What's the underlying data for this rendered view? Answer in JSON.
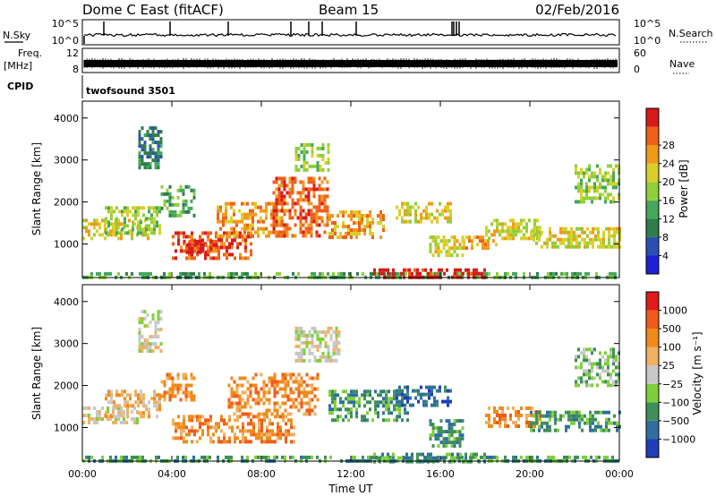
{
  "header": {
    "station": "Dome C East (fitACF)",
    "beam": "Beam 15",
    "date": "02/Feb/2016"
  },
  "aux": {
    "nsky_label": "N.Sky",
    "nsearch_label": "N.Search",
    "noise_ticks": [
      "10^5",
      "10^0"
    ],
    "freq_label": "Freq.",
    "freq_unit": "[MHz]",
    "freq_ticks": [
      "12",
      "8"
    ],
    "nave_label": "Nave",
    "nave_ticks": [
      "60",
      "0"
    ],
    "cpid_label": "CPID",
    "cpid_value": "twofsound 3501"
  },
  "chart_data": [
    {
      "type": "heatmap",
      "name": "power",
      "xlabel": "Time UT",
      "ylabel": "Slant Range [km]",
      "xlim": [
        0,
        24
      ],
      "x_tick_labels": [
        "00:00",
        "04:00",
        "08:00",
        "12:00",
        "16:00",
        "20:00",
        "00:00"
      ],
      "ylim": [
        200,
        4400
      ],
      "y_ticks": [
        1000,
        2000,
        3000,
        4000
      ],
      "colorbar": {
        "label": "Power [dB]",
        "ticks": [
          "4",
          "8",
          "12",
          "16",
          "20",
          "24",
          "28"
        ],
        "colors": [
          "#1f1fd6",
          "#2c4fb6",
          "#2f7d4a",
          "#44a85c",
          "#8fcf3a",
          "#d8cf2a",
          "#f09a1a",
          "#f0601a",
          "#d81a1a"
        ]
      },
      "regions": [
        {
          "t0": 0.0,
          "t1": 24.0,
          "r0": 180,
          "r1": 330,
          "level": 3
        },
        {
          "t0": 0.0,
          "t1": 3.0,
          "r0": 1100,
          "r1": 1600,
          "level": 5
        },
        {
          "t0": 1.0,
          "t1": 3.5,
          "r0": 1300,
          "r1": 1900,
          "level": 4
        },
        {
          "t0": 2.5,
          "t1": 3.5,
          "r0": 2800,
          "r1": 3800,
          "level": 2
        },
        {
          "t0": 3.5,
          "t1": 5.0,
          "r0": 1700,
          "r1": 2400,
          "level": 3
        },
        {
          "t0": 4.0,
          "t1": 7.5,
          "r0": 700,
          "r1": 1300,
          "level": 7
        },
        {
          "t0": 4.5,
          "t1": 6.0,
          "r0": 800,
          "r1": 1100,
          "level": 8
        },
        {
          "t0": 6.0,
          "t1": 9.0,
          "r0": 1200,
          "r1": 2000,
          "level": 6
        },
        {
          "t0": 8.5,
          "t1": 11.0,
          "r0": 1200,
          "r1": 2600,
          "level": 7
        },
        {
          "t0": 9.5,
          "t1": 11.0,
          "r0": 2800,
          "r1": 3400,
          "level": 4
        },
        {
          "t0": 11.0,
          "t1": 13.5,
          "r0": 1200,
          "r1": 1800,
          "level": 6
        },
        {
          "t0": 13.0,
          "t1": 18.0,
          "r0": 180,
          "r1": 420,
          "level": 8
        },
        {
          "t0": 14.0,
          "t1": 16.5,
          "r0": 1500,
          "r1": 2000,
          "level": 5
        },
        {
          "t0": 15.5,
          "t1": 17.0,
          "r0": 700,
          "r1": 1200,
          "level": 5
        },
        {
          "t0": 17.0,
          "t1": 18.5,
          "r0": 900,
          "r1": 1200,
          "level": 6
        },
        {
          "t0": 18.0,
          "t1": 20.5,
          "r0": 1100,
          "r1": 1600,
          "level": 5
        },
        {
          "t0": 20.0,
          "t1": 24.0,
          "r0": 900,
          "r1": 1400,
          "level": 5
        },
        {
          "t0": 22.0,
          "t1": 24.0,
          "r0": 2000,
          "r1": 2900,
          "level": 4
        }
      ]
    },
    {
      "type": "heatmap",
      "name": "velocity",
      "xlabel": "Time UT",
      "ylabel": "Slant Range [km]",
      "xlim": [
        0,
        24
      ],
      "x_tick_labels": [
        "00:00",
        "04:00",
        "08:00",
        "12:00",
        "16:00",
        "20:00",
        "00:00"
      ],
      "ylim": [
        200,
        4400
      ],
      "y_ticks": [
        1000,
        2000,
        3000,
        4000
      ],
      "colorbar": {
        "label": "Velocity [m s⁻¹]",
        "ticks": [
          "1000",
          "500",
          "100",
          "25",
          "−25",
          "−100",
          "−500",
          "−1000"
        ],
        "colors": [
          "#1f3fb6",
          "#2f6fa0",
          "#3f8f5a",
          "#7fcf3a",
          "#c8c8c8",
          "#f0b060",
          "#f08a1a",
          "#f05a1a",
          "#e01a1a"
        ]
      },
      "regions": [
        {
          "t0": 0.0,
          "t1": 24.0,
          "r0": 180,
          "r1": 330,
          "level": 2
        },
        {
          "t0": 0.0,
          "t1": 2.5,
          "r0": 1100,
          "r1": 1500,
          "level": 4
        },
        {
          "t0": 1.0,
          "t1": 3.5,
          "r0": 1300,
          "r1": 1900,
          "level": 5
        },
        {
          "t0": 2.5,
          "t1": 3.5,
          "r0": 2800,
          "r1": 3800,
          "level": 4
        },
        {
          "t0": 3.5,
          "t1": 5.0,
          "r0": 1700,
          "r1": 2300,
          "level": 6
        },
        {
          "t0": 4.0,
          "t1": 9.5,
          "r0": 700,
          "r1": 1300,
          "level": 6
        },
        {
          "t0": 6.5,
          "t1": 10.5,
          "r0": 1300,
          "r1": 2300,
          "level": 6
        },
        {
          "t0": 9.5,
          "t1": 11.5,
          "r0": 2600,
          "r1": 3400,
          "level": 4
        },
        {
          "t0": 11.0,
          "t1": 14.5,
          "r0": 1200,
          "r1": 1900,
          "level": 2
        },
        {
          "t0": 13.0,
          "t1": 18.0,
          "r0": 180,
          "r1": 400,
          "level": 2
        },
        {
          "t0": 14.0,
          "t1": 16.5,
          "r0": 1500,
          "r1": 2000,
          "level": 1
        },
        {
          "t0": 15.5,
          "t1": 17.0,
          "r0": 600,
          "r1": 1200,
          "level": 2
        },
        {
          "t0": 18.0,
          "t1": 20.5,
          "r0": 1000,
          "r1": 1500,
          "level": 6
        },
        {
          "t0": 20.0,
          "t1": 24.0,
          "r0": 900,
          "r1": 1400,
          "level": 2
        },
        {
          "t0": 22.0,
          "t1": 24.0,
          "r0": 2000,
          "r1": 2900,
          "level": 3
        }
      ]
    }
  ]
}
